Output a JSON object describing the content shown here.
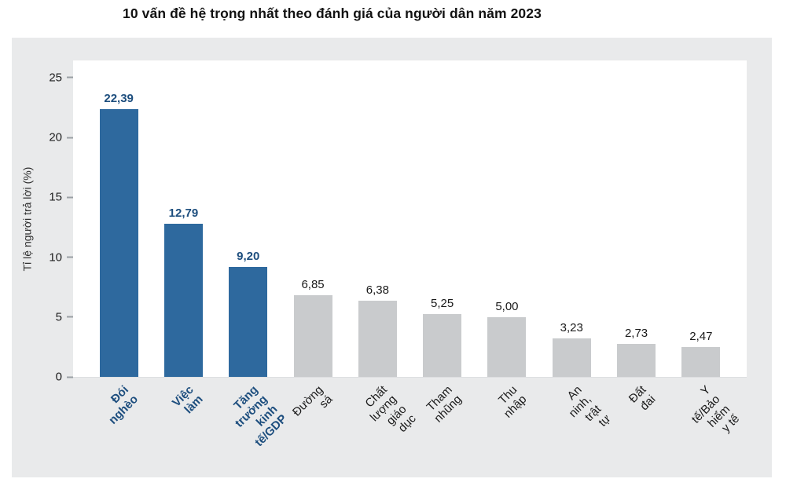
{
  "title": "10 vấn đề hệ trọng nhất theo đánh giá của người dân năm 2023",
  "chart_data": {
    "type": "bar",
    "title": "10 vấn đề hệ trọng nhất theo đánh giá của người dân năm 2023",
    "xlabel": "",
    "ylabel": "Tỉ lệ người trả lời (%)",
    "ylim": [
      0,
      26.44
    ],
    "yticks": [
      0,
      5,
      10,
      15,
      20,
      25
    ],
    "grid": false,
    "legend_position": "none",
    "decimal_separator": ",",
    "categories": [
      "Đói nghèo",
      "Việc làm",
      "Tăng trưởng\nkinh tế/GDP",
      "Đường sá",
      "Chất lượng giáo dục",
      "Tham nhũng",
      "Thu nhập",
      "An ninh, trật tự",
      "Đất đai",
      "Y tế/Bảo hiểm y tế"
    ],
    "values": [
      22.39,
      12.79,
      9.2,
      6.85,
      6.38,
      5.25,
      5.0,
      3.23,
      2.73,
      2.47
    ],
    "value_labels": [
      "22,39",
      "12,79",
      "9,20",
      "6,85",
      "6,38",
      "5,25",
      "5,00",
      "3,23",
      "2,73",
      "2,47"
    ],
    "highlight_count": 3,
    "colors": {
      "highlight_bar": "#2e699e",
      "default_bar": "#c9cbcd",
      "highlight_text": "#1d4e7e",
      "default_text": "#1a1a1a",
      "panel_background": "#e9eaeb",
      "tick_dash": "#9aa0a4"
    }
  }
}
